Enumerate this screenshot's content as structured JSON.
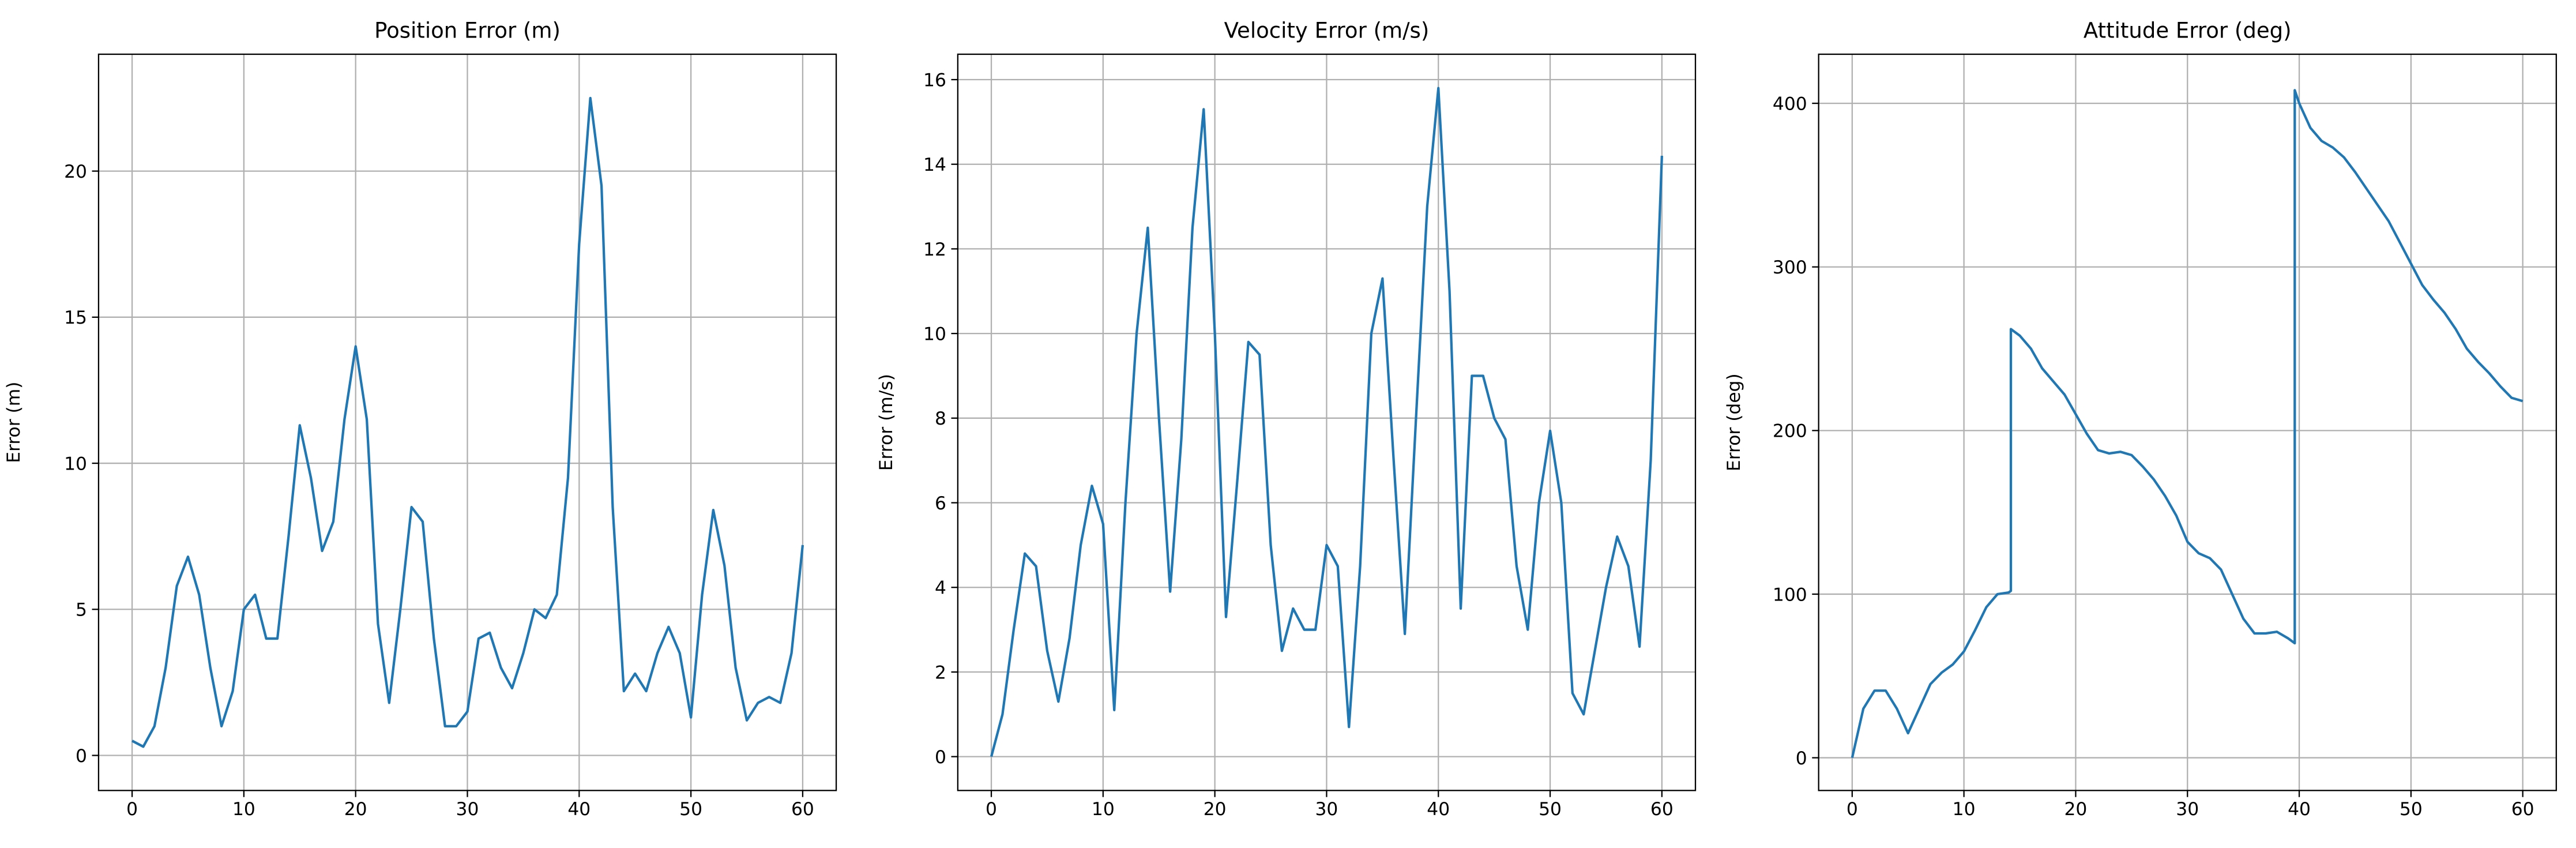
{
  "chart_data": [
    {
      "type": "line",
      "title": "Position Error (m)",
      "y_label": "Error (m)",
      "grid": true,
      "x": [
        0,
        1,
        2,
        3,
        4,
        5,
        6,
        7,
        8,
        9,
        10,
        11,
        12,
        13,
        14,
        15,
        16,
        17,
        18,
        19,
        20,
        21,
        22,
        23,
        24,
        25,
        26,
        27,
        28,
        29,
        30,
        31,
        32,
        33,
        34,
        35,
        36,
        37,
        38,
        39,
        40,
        41,
        42,
        43,
        44,
        45,
        46,
        47,
        48,
        49,
        50,
        51,
        52,
        53,
        54,
        55,
        56,
        57,
        58,
        59,
        60
      ],
      "series": [
        {
          "color": "#1f77b4",
          "values": [
            0.5,
            0.3,
            1.0,
            3.0,
            5.8,
            6.8,
            5.5,
            3.0,
            1.0,
            2.2,
            5.0,
            5.5,
            4.0,
            4.0,
            7.5,
            11.3,
            9.5,
            7.0,
            8.0,
            11.5,
            14.0,
            11.5,
            4.5,
            1.8,
            5.0,
            8.5,
            8.0,
            4.0,
            1.0,
            1.0,
            1.5,
            4.0,
            4.2,
            3.0,
            2.3,
            3.5,
            5.0,
            4.7,
            5.5,
            9.5,
            17.5,
            22.5,
            19.5,
            8.5,
            2.2,
            2.8,
            2.2,
            3.5,
            4.4,
            3.5,
            1.3,
            5.5,
            8.4,
            6.5,
            3.0,
            1.2,
            1.8,
            2.0,
            1.8,
            3.5,
            7.2
          ]
        }
      ],
      "xlim": [
        -3,
        63
      ],
      "xticks": [
        0,
        10,
        20,
        30,
        40,
        50,
        60
      ],
      "ylim": [
        -1.2,
        24
      ],
      "yticks": [
        0,
        5,
        10,
        15,
        20
      ]
    },
    {
      "type": "line",
      "title": "Velocity Error (m/s)",
      "y_label": "Error (m/s)",
      "grid": true,
      "x": [
        0,
        1,
        2,
        3,
        4,
        5,
        6,
        7,
        8,
        9,
        10,
        11,
        12,
        13,
        14,
        15,
        16,
        17,
        18,
        19,
        20,
        21,
        22,
        23,
        24,
        25,
        26,
        27,
        28,
        29,
        30,
        31,
        32,
        33,
        34,
        35,
        36,
        37,
        38,
        39,
        40,
        41,
        42,
        43,
        44,
        45,
        46,
        47,
        48,
        49,
        50,
        51,
        52,
        53,
        54,
        55,
        56,
        57,
        58,
        59,
        60
      ],
      "series": [
        {
          "color": "#1f77b4",
          "values": [
            0,
            1.0,
            3.0,
            4.8,
            4.5,
            2.5,
            1.3,
            2.8,
            5.0,
            6.4,
            5.5,
            1.1,
            6.0,
            10.0,
            12.5,
            8.0,
            3.9,
            7.5,
            12.5,
            15.3,
            10.0,
            3.3,
            6.5,
            9.8,
            9.5,
            5.0,
            2.5,
            3.5,
            3.0,
            3.0,
            5.0,
            4.5,
            0.7,
            4.5,
            10.0,
            11.3,
            7.0,
            2.9,
            8.0,
            13.0,
            15.8,
            11.0,
            3.5,
            9.0,
            9.0,
            8.0,
            7.5,
            4.5,
            3.0,
            6.0,
            7.7,
            6.0,
            1.5,
            1.0,
            2.5,
            4.0,
            5.2,
            4.5,
            2.6,
            7.0,
            14.2
          ]
        }
      ],
      "xlim": [
        -3,
        63
      ],
      "xticks": [
        0,
        10,
        20,
        30,
        40,
        50,
        60
      ],
      "ylim": [
        -0.8,
        16.6
      ],
      "yticks": [
        0,
        2,
        4,
        6,
        8,
        10,
        12,
        14,
        16
      ]
    },
    {
      "type": "line",
      "title": "Attitude Error (deg)",
      "y_label": "Error (deg)",
      "grid": true,
      "x": [
        0,
        1,
        2,
        3,
        4,
        5,
        6,
        7,
        8,
        9,
        10,
        11,
        12,
        13,
        14,
        14.2,
        14.2,
        15,
        16,
        17,
        18,
        19,
        20,
        21,
        22,
        23,
        24,
        25,
        26,
        27,
        28,
        29,
        30,
        31,
        32,
        33,
        34,
        35,
        36,
        37,
        38,
        39,
        39.6,
        39.6,
        40,
        41,
        42,
        43,
        44,
        45,
        46,
        47,
        48,
        49,
        50,
        51,
        52,
        53,
        54,
        55,
        56,
        57,
        58,
        59,
        60
      ],
      "series": [
        {
          "color": "#1f77b4",
          "values": [
            0,
            30,
            41,
            41,
            30,
            15,
            30,
            45,
            52,
            57,
            65,
            78,
            92,
            100,
            101,
            102,
            262,
            258,
            250,
            238,
            230,
            222,
            210,
            198,
            188,
            186,
            187,
            185,
            178,
            170,
            160,
            148,
            132,
            125,
            122,
            115,
            100,
            85,
            76,
            76,
            77,
            73,
            70,
            408,
            400,
            385,
            377,
            373,
            367,
            358,
            348,
            338,
            328,
            315,
            302,
            289,
            280,
            272,
            262,
            250,
            242,
            235,
            227,
            220,
            218
          ]
        }
      ],
      "xlim": [
        -3,
        63
      ],
      "xticks": [
        0,
        10,
        20,
        30,
        40,
        50,
        60
      ],
      "ylim": [
        -20,
        430
      ],
      "yticks": [
        0,
        100,
        200,
        300,
        400
      ]
    }
  ]
}
